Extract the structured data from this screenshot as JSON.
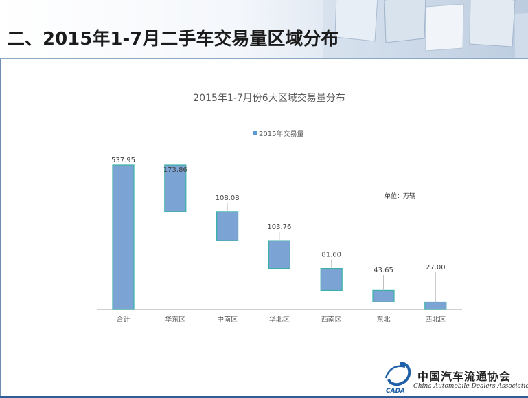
{
  "page": {
    "title": "二、2015年1-7月二手车交易量区域分布"
  },
  "chart_data": {
    "type": "bar",
    "subtype": "waterfall",
    "title": "2015年1-7月份6大区域交易量分布",
    "legend": [
      "2015年交易量"
    ],
    "legend_position": "top",
    "unit_note": "单位：万辆",
    "categories": [
      "合计",
      "华东区",
      "中南区",
      "华北区",
      "西南区",
      "东北",
      "西北区"
    ],
    "series": [
      {
        "name": "2015年交易量",
        "values": [
          537.95,
          173.86,
          108.08,
          103.76,
          81.6,
          43.65,
          27.0
        ]
      }
    ],
    "value_labels": [
      "537.95",
      "173.86",
      "108.08",
      "103.76",
      "81.60",
      "43.65",
      "27.00"
    ],
    "ylim": [
      0,
      537.95
    ],
    "grid": false,
    "colors": {
      "bar_fill": "#7ba3d4",
      "bar_stroke": "#38b2a8"
    }
  },
  "logo": {
    "cn": "中国汽车流通协会",
    "en": "China Automobile Dealers Association"
  }
}
